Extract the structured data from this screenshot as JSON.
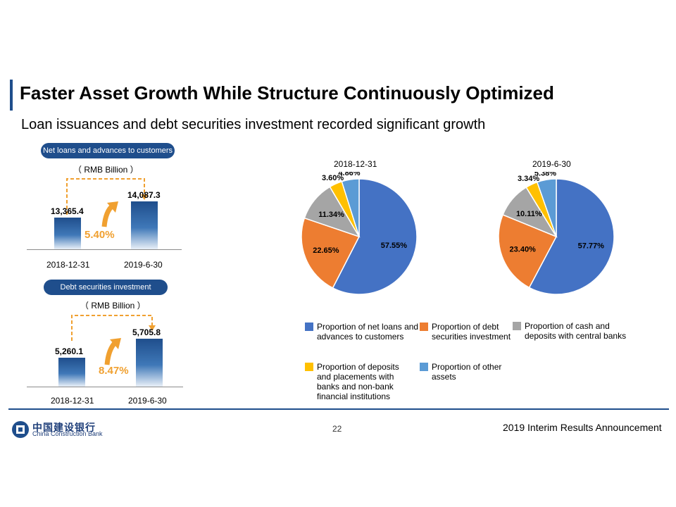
{
  "header": {
    "title": "Faster Asset Growth While Structure Continuously Optimized",
    "subtitle": "Loan issuances and debt securities investment recorded significant growth"
  },
  "colors": {
    "brand": "#1f4e8c",
    "growth": "#f0a030"
  },
  "chart_data": [
    {
      "type": "bar",
      "title": "Net loans and advances to customers",
      "unit_label": "（ RMB Billion ）",
      "categories": [
        "2018-12-31",
        "2019-6-30"
      ],
      "values": [
        13365.4,
        14087.3
      ],
      "value_labels": [
        "13,365.4",
        "14,087.3"
      ],
      "growth_label": "5.40%"
    },
    {
      "type": "bar",
      "title": "Debt securities investment",
      "unit_label": "（ RMB Billion ）",
      "categories": [
        "2018-12-31",
        "2019-6-30"
      ],
      "values": [
        5260.1,
        5705.8
      ],
      "value_labels": [
        "5,260.1",
        "5,705.8"
      ],
      "growth_label": "8.47%"
    },
    {
      "type": "pie",
      "title": "2018-12-31",
      "labels": [
        "Proportion of net loans and advances to customers",
        "Proportion of debt securities investment",
        "Proportion of cash and deposits with central banks",
        "Proportion of deposits and placements with banks and non-bank financial institutions",
        "Proportion of other assets"
      ],
      "values": [
        57.55,
        22.65,
        11.34,
        3.6,
        4.86
      ],
      "value_labels": [
        "57.55%",
        "22.65%",
        "11.34%",
        "3.60%",
        "4.86%"
      ],
      "colors": [
        "#4472c4",
        "#ed7d31",
        "#a5a5a5",
        "#ffc000",
        "#5b9bd5"
      ]
    },
    {
      "type": "pie",
      "title": "2019-6-30",
      "labels": [
        "Proportion of net loans and advances to customers",
        "Proportion of debt securities investment",
        "Proportion of cash and deposits with central banks",
        "Proportion of deposits and placements with banks and non-bank financial institutions",
        "Proportion of other assets"
      ],
      "values": [
        57.77,
        23.4,
        10.11,
        3.34,
        5.38
      ],
      "value_labels": [
        "57.77%",
        "23.40%",
        "10.11%",
        "3.34%",
        "5.38%"
      ],
      "colors": [
        "#4472c4",
        "#ed7d31",
        "#a5a5a5",
        "#ffc000",
        "#5b9bd5"
      ]
    }
  ],
  "legend": [
    {
      "label": "Proportion of net loans and advances to customers",
      "color": "#4472c4"
    },
    {
      "label": "Proportion of debt securities investment",
      "color": "#ed7d31"
    },
    {
      "label": "Proportion of cash and deposits with central banks",
      "color": "#a5a5a5"
    },
    {
      "label": "Proportion of deposits and placements with banks and non-bank financial institutions",
      "color": "#ffc000"
    },
    {
      "label": "Proportion of other assets",
      "color": "#5b9bd5"
    }
  ],
  "footer": {
    "logo_cn": "中国建设银行",
    "logo_en": "China Construction Bank",
    "page_number": "22",
    "text": "2019 Interim Results Announcement"
  }
}
